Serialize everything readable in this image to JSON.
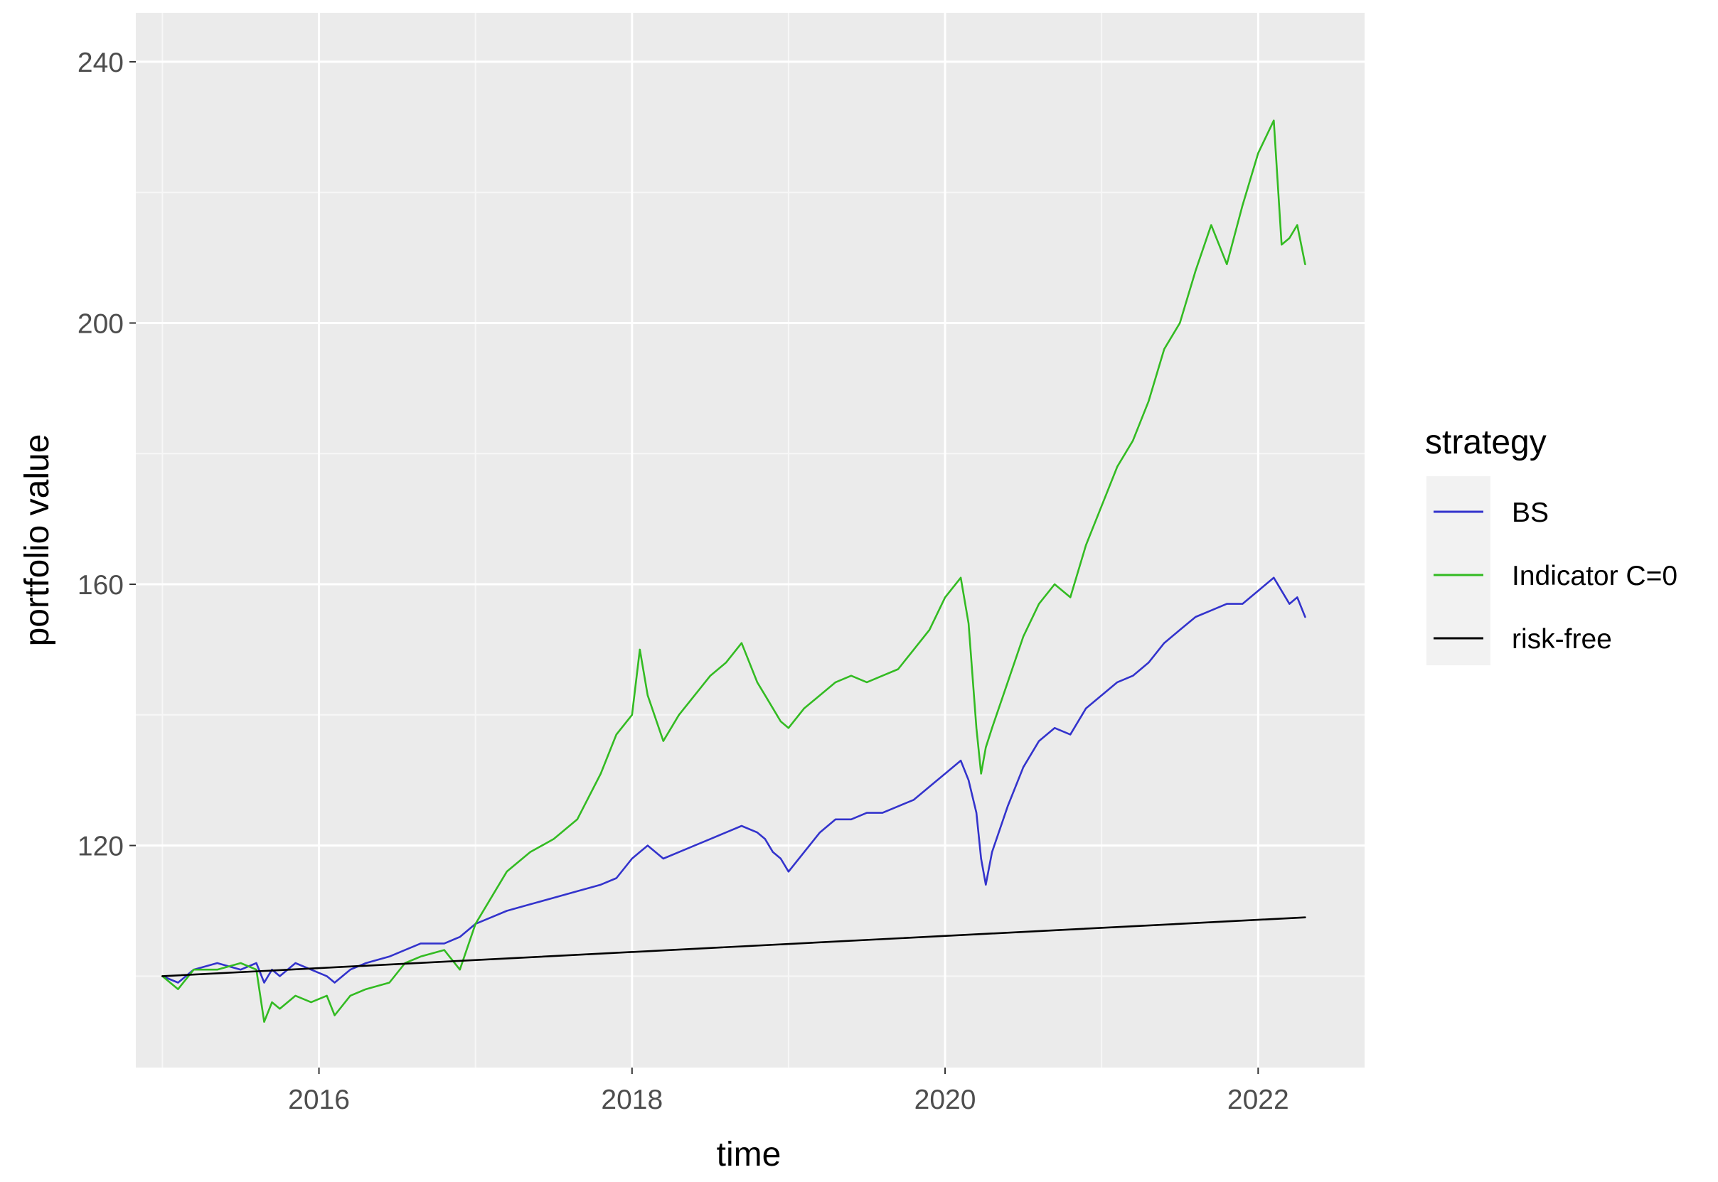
{
  "chart_data": {
    "type": "line",
    "xlabel": "time",
    "ylabel": "portfolio value",
    "xlim": [
      2014.83,
      2022.68
    ],
    "ylim": [
      86.0,
      247.5
    ],
    "x_ticks": [
      2016,
      2018,
      2020,
      2022
    ],
    "x_tick_labels": [
      "2016",
      "2018",
      "2020",
      "2022"
    ],
    "y_ticks": [
      120,
      160,
      200,
      240
    ],
    "y_tick_labels": [
      "120",
      "160",
      "200",
      "240"
    ],
    "grid": true,
    "panel_background": "#ebebeb",
    "legend": {
      "title": "strategy",
      "placement": "right"
    },
    "series": [
      {
        "name": "BS",
        "color": "#3333cc",
        "x": [
          2015.0,
          2015.1,
          2015.2,
          2015.35,
          2015.5,
          2015.6,
          2015.65,
          2015.7,
          2015.75,
          2015.85,
          2015.95,
          2016.05,
          2016.1,
          2016.2,
          2016.3,
          2016.45,
          2016.55,
          2016.65,
          2016.8,
          2016.9,
          2017.0,
          2017.1,
          2017.2,
          2017.35,
          2017.5,
          2017.65,
          2017.8,
          2017.9,
          2018.0,
          2018.05,
          2018.1,
          2018.2,
          2018.3,
          2018.4,
          2018.5,
          2018.6,
          2018.7,
          2018.8,
          2018.85,
          2018.9,
          2018.95,
          2019.0,
          2019.1,
          2019.2,
          2019.3,
          2019.4,
          2019.5,
          2019.6,
          2019.7,
          2019.8,
          2019.9,
          2020.0,
          2020.1,
          2020.15,
          2020.2,
          2020.23,
          2020.26,
          2020.3,
          2020.4,
          2020.5,
          2020.6,
          2020.7,
          2020.8,
          2020.9,
          2021.0,
          2021.1,
          2021.2,
          2021.3,
          2021.4,
          2021.5,
          2021.6,
          2021.7,
          2021.8,
          2021.9,
          2022.0,
          2022.1,
          2022.15,
          2022.2,
          2022.25,
          2022.3
        ],
        "values": [
          100,
          99,
          101,
          102,
          101,
          102,
          99,
          101,
          100,
          102,
          101,
          100,
          99,
          101,
          102,
          103,
          104,
          105,
          105,
          106,
          108,
          109,
          110,
          111,
          112,
          113,
          114,
          115,
          118,
          119,
          120,
          118,
          119,
          120,
          121,
          122,
          123,
          122,
          121,
          119,
          118,
          116,
          119,
          122,
          124,
          124,
          125,
          125,
          126,
          127,
          129,
          131,
          133,
          130,
          125,
          118,
          114,
          119,
          126,
          132,
          136,
          138,
          137,
          141,
          143,
          145,
          146,
          148,
          151,
          153,
          155,
          156,
          157,
          157,
          159,
          161,
          159,
          157,
          158,
          155
        ]
      },
      {
        "name": "Indicator C=0",
        "color": "#33bb22",
        "x": [
          2015.0,
          2015.1,
          2015.2,
          2015.35,
          2015.5,
          2015.6,
          2015.65,
          2015.7,
          2015.75,
          2015.85,
          2015.95,
          2016.05,
          2016.1,
          2016.2,
          2016.3,
          2016.45,
          2016.55,
          2016.65,
          2016.8,
          2016.9,
          2017.0,
          2017.1,
          2017.2,
          2017.35,
          2017.5,
          2017.65,
          2017.8,
          2017.9,
          2018.0,
          2018.05,
          2018.1,
          2018.2,
          2018.3,
          2018.4,
          2018.5,
          2018.6,
          2018.7,
          2018.8,
          2018.85,
          2018.9,
          2018.95,
          2019.0,
          2019.1,
          2019.2,
          2019.3,
          2019.4,
          2019.5,
          2019.6,
          2019.7,
          2019.8,
          2019.9,
          2020.0,
          2020.1,
          2020.15,
          2020.2,
          2020.23,
          2020.26,
          2020.3,
          2020.4,
          2020.5,
          2020.6,
          2020.7,
          2020.8,
          2020.9,
          2021.0,
          2021.1,
          2021.2,
          2021.3,
          2021.4,
          2021.5,
          2021.6,
          2021.7,
          2021.8,
          2021.9,
          2022.0,
          2022.1,
          2022.15,
          2022.2,
          2022.25,
          2022.3
        ],
        "values": [
          100,
          98,
          101,
          101,
          102,
          101,
          93,
          96,
          95,
          97,
          96,
          97,
          94,
          97,
          98,
          99,
          102,
          103,
          104,
          101,
          108,
          112,
          116,
          119,
          121,
          124,
          131,
          137,
          140,
          150,
          143,
          136,
          140,
          143,
          146,
          148,
          151,
          145,
          143,
          141,
          139,
          138,
          141,
          143,
          145,
          146,
          145,
          146,
          147,
          150,
          153,
          158,
          161,
          154,
          138,
          131,
          135,
          138,
          145,
          152,
          157,
          160,
          158,
          166,
          172,
          178,
          182,
          188,
          196,
          200,
          208,
          215,
          209,
          218,
          226,
          231,
          212,
          213,
          215,
          209
        ]
      },
      {
        "name": "risk-free",
        "color": "#000000",
        "x": [
          2015.0,
          2022.3
        ],
        "values": [
          100,
          109
        ]
      }
    ]
  }
}
